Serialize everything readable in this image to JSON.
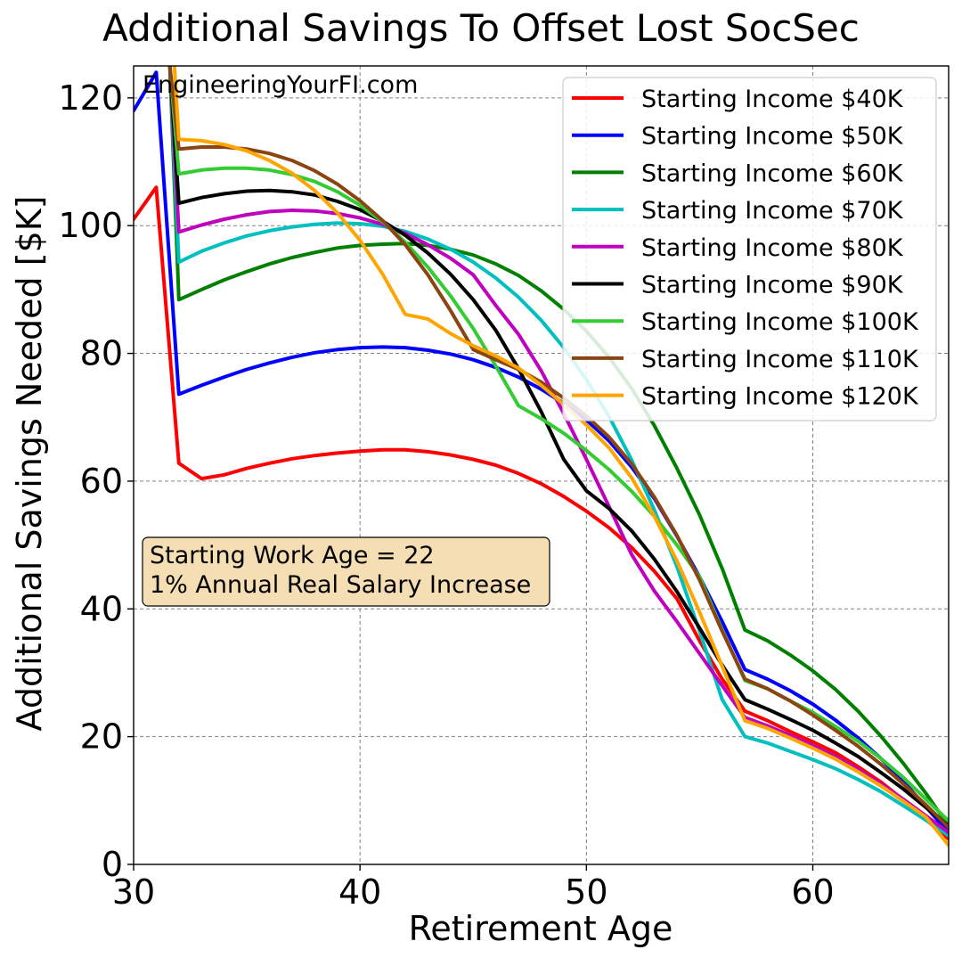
{
  "chart_data": {
    "type": "line",
    "title": "Additional Savings To Offset Lost SocSec",
    "xlabel": "Retirement Age",
    "ylabel": "Additional Savings Needed [$K]",
    "xlim": [
      30,
      66
    ],
    "ylim": [
      0,
      125
    ],
    "xticks": [
      30,
      40,
      50,
      60
    ],
    "yticks": [
      0,
      20,
      40,
      60,
      80,
      100,
      120
    ],
    "grid": true,
    "legend_position": "top-right",
    "watermark": "EngineeringYourFI.com",
    "annotation": [
      "Starting Work Age = 22",
      "1% Annual Real Salary Increase"
    ],
    "annotation_style": {
      "fill": "#f5deb3",
      "edge": "#000000"
    },
    "series": [
      {
        "name": "Starting Income $40K",
        "color": "#ff0000",
        "x": [
          30,
          31,
          32,
          33,
          34,
          35,
          36,
          37,
          38,
          39,
          40,
          41,
          42,
          43,
          44,
          45,
          46,
          47,
          48,
          49,
          50,
          51,
          52,
          53,
          54,
          55,
          56,
          57,
          58,
          59,
          60,
          61,
          62,
          63,
          64,
          65,
          66
        ],
        "y": [
          101,
          106,
          62.8,
          60.4,
          61,
          62,
          62.8,
          63.5,
          64,
          64.4,
          64.7,
          64.9,
          64.9,
          64.6,
          64.1,
          63.4,
          62.5,
          61.2,
          59.6,
          57.6,
          55.3,
          52.7,
          49.6,
          45.9,
          41.6,
          35,
          29,
          24,
          22.5,
          20.8,
          19.2,
          17.5,
          15.3,
          12.9,
          10.1,
          7,
          4
        ]
      },
      {
        "name": "Starting Income $50K",
        "color": "#0000ff",
        "x": [
          30,
          31,
          32,
          33,
          34,
          35,
          36,
          37,
          38,
          39,
          40,
          41,
          42,
          43,
          44,
          45,
          46,
          47,
          48,
          49,
          50,
          51,
          52,
          53,
          54,
          55,
          56,
          57,
          58,
          59,
          60,
          61,
          62,
          63,
          64,
          65,
          66
        ],
        "y": [
          118,
          124,
          73.6,
          75,
          76.3,
          77.5,
          78.5,
          79.4,
          80.1,
          80.6,
          80.9,
          81,
          80.9,
          80.5,
          79.9,
          79,
          77.8,
          76.3,
          74.4,
          72.2,
          69.6,
          66.3,
          62.2,
          57.3,
          51.4,
          45,
          38,
          30.5,
          29,
          27.2,
          25.1,
          22.6,
          19.8,
          16.6,
          13,
          9,
          5
        ]
      },
      {
        "name": "Starting Income $60K",
        "color": "#008000",
        "x": [
          31.6,
          32,
          33,
          34,
          35,
          36,
          37,
          38,
          39,
          40,
          41,
          42,
          43,
          44,
          45,
          46,
          47,
          48,
          49,
          50,
          51,
          52,
          53,
          54,
          55,
          56,
          57,
          58,
          59,
          60,
          61,
          62,
          63,
          64,
          65,
          66
        ],
        "y": [
          125,
          88.4,
          90,
          91.5,
          92.8,
          94,
          95,
          95.8,
          96.5,
          96.9,
          97.1,
          97.2,
          96.9,
          96.3,
          95.4,
          94,
          92.2,
          89.8,
          86.9,
          83.5,
          79.4,
          74.5,
          68.7,
          62,
          54.7,
          46.3,
          36.7,
          35,
          32.8,
          30.3,
          27.4,
          24,
          20.1,
          15.8,
          11.1,
          6
        ]
      },
      {
        "name": "Starting Income $70K",
        "color": "#00bfbf",
        "x": [
          31.6,
          32,
          33,
          34,
          35,
          36,
          37,
          38,
          39,
          40,
          41,
          42,
          43,
          44,
          45,
          46,
          47,
          48,
          49,
          50,
          51,
          52,
          53,
          54,
          55,
          56,
          57,
          58,
          59,
          60,
          61,
          62,
          63,
          64,
          65,
          66
        ],
        "y": [
          125,
          94.3,
          96,
          97.3,
          98.4,
          99.2,
          99.8,
          100.2,
          100.4,
          100.3,
          99.9,
          99.1,
          97.9,
          96.3,
          94.3,
          91.8,
          88.8,
          85.2,
          80.9,
          75.9,
          70.1,
          63.3,
          55.5,
          46.6,
          36.5,
          25.8,
          20,
          19,
          17.7,
          16.4,
          15,
          13.3,
          11.4,
          9.2,
          6.9,
          4.5
        ]
      },
      {
        "name": "Starting Income $80K",
        "color": "#bf00bf",
        "x": [
          31.6,
          32,
          33,
          34,
          35,
          36,
          37,
          38,
          39,
          40,
          41,
          42,
          43,
          44,
          45,
          46,
          47,
          48,
          49,
          50,
          51,
          52,
          53,
          54,
          55,
          56,
          57,
          58,
          59,
          60,
          61,
          62,
          63,
          64,
          65,
          66
        ],
        "y": [
          125,
          99,
          100.1,
          101,
          101.7,
          102.2,
          102.4,
          102.3,
          101.9,
          101.2,
          100.2,
          98.8,
          97,
          94.9,
          92.3,
          87.5,
          83,
          77.3,
          70.6,
          63.4,
          56,
          48.5,
          42.8,
          38,
          33,
          28,
          23,
          21.7,
          20.2,
          18.6,
          16.9,
          14.9,
          12.6,
          10.2,
          7.6,
          5
        ]
      },
      {
        "name": "Starting Income $90K",
        "color": "#000000",
        "x": [
          31.6,
          32,
          33,
          34,
          35,
          36,
          37,
          38,
          39,
          40,
          41,
          42,
          43,
          44,
          45,
          46,
          47,
          48,
          49,
          50,
          51,
          52,
          53,
          54,
          55,
          56,
          57,
          58,
          59,
          60,
          61,
          62,
          63,
          64,
          65,
          66
        ],
        "y": [
          125,
          103.5,
          104.4,
          105,
          105.4,
          105.5,
          105.3,
          104.8,
          103.8,
          102.5,
          100.7,
          98.5,
          95.7,
          92.4,
          88.4,
          83.6,
          77.6,
          70.9,
          63.4,
          58.5,
          55.7,
          52.2,
          47.8,
          42.7,
          37,
          31.2,
          25.8,
          24.3,
          22.7,
          21,
          19,
          16.9,
          14.4,
          11.8,
          8.9,
          6
        ]
      },
      {
        "name": "Starting Income $100K",
        "color": "#33cc33",
        "x": [
          31.6,
          32,
          33,
          34,
          35,
          36,
          37,
          38,
          39,
          40,
          41,
          42,
          43,
          44,
          45,
          46,
          47,
          48,
          49,
          50,
          51,
          52,
          53,
          54,
          55,
          56,
          57,
          58,
          59,
          60,
          61,
          62,
          63,
          64,
          65,
          66
        ],
        "y": [
          125,
          108.1,
          108.7,
          109,
          109,
          108.7,
          108,
          106.9,
          105.3,
          103.2,
          100.6,
          97.4,
          93.5,
          89,
          83.9,
          78,
          71.8,
          69.8,
          67.5,
          64.8,
          61.8,
          58.4,
          54.5,
          50,
          45,
          36.7,
          28.8,
          27.5,
          25.6,
          23.8,
          21.6,
          19.3,
          16.6,
          13.6,
          10.2,
          6.8
        ]
      },
      {
        "name": "Starting Income $110K",
        "color": "#8b4513",
        "x": [
          31.6,
          32,
          33,
          34,
          35,
          36,
          37,
          38,
          39,
          40,
          41,
          42,
          43,
          44,
          45,
          46,
          47,
          48,
          49,
          50,
          51,
          52,
          53,
          54,
          55,
          56,
          57,
          58,
          59,
          60,
          61,
          62,
          63,
          64,
          65,
          66
        ],
        "y": [
          125,
          112,
          112.3,
          112.3,
          112,
          111.3,
          110.2,
          108.6,
          106.5,
          103.9,
          100.8,
          97,
          92.3,
          86.7,
          80.6,
          79,
          77.5,
          75.5,
          73,
          70.2,
          66.9,
          62.7,
          57.5,
          51.5,
          44.5,
          36.5,
          29,
          27.5,
          25.6,
          23.4,
          21,
          18.5,
          15.7,
          12.6,
          9.3,
          5.8
        ]
      },
      {
        "name": "Starting Income $120K",
        "color": "#ffa500",
        "x": [
          31.8,
          32,
          33,
          34,
          35,
          36,
          37,
          38,
          39,
          40,
          41,
          42,
          43,
          44,
          45,
          46,
          47,
          48,
          49,
          50,
          51,
          52,
          53,
          54,
          55,
          56,
          57,
          58,
          59,
          60,
          61,
          62,
          63,
          64,
          65,
          66
        ],
        "y": [
          125,
          113.5,
          113.3,
          112.7,
          111.7,
          110.2,
          108.2,
          105.5,
          102,
          97.7,
          92.4,
          86.1,
          85.4,
          83.1,
          81.2,
          79.6,
          77.7,
          75,
          72,
          68.8,
          65.2,
          60.5,
          54.5,
          47.5,
          39.5,
          31,
          22.5,
          21.3,
          19.8,
          18.2,
          16.5,
          14.5,
          12.3,
          9.9,
          7.4,
          3
        ]
      }
    ]
  }
}
